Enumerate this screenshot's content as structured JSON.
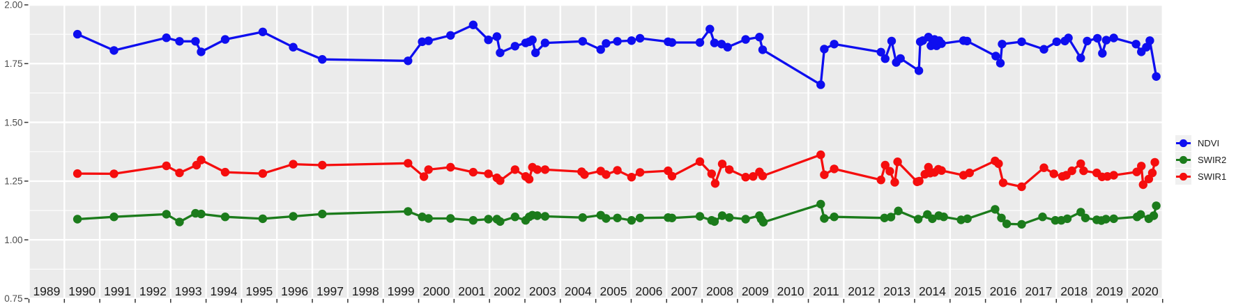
{
  "chart_data": {
    "type": "line",
    "title": "",
    "x_axis": {
      "min": 1989,
      "max": 2021,
      "year_labels": [
        "1989",
        "1990",
        "1991",
        "1992",
        "1993",
        "1994",
        "1995",
        "1996",
        "1997",
        "1998",
        "1999",
        "2000",
        "2001",
        "2002",
        "2003",
        "2004",
        "2005",
        "2006",
        "2007",
        "2008",
        "2009",
        "2010",
        "2011",
        "2012",
        "2013",
        "2014",
        "2015",
        "2016",
        "2017",
        "2018",
        "2019",
        "2020"
      ]
    },
    "y_axis": {
      "min": 0.75,
      "max": 2.0,
      "ticks": [
        {
          "label": "2.00",
          "value": 2.0
        },
        {
          "label": "1.75",
          "value": 1.75
        },
        {
          "label": "1.50",
          "value": 1.5
        },
        {
          "label": "1.25",
          "value": 1.25
        },
        {
          "label": "1.00",
          "value": 1.0
        },
        {
          "label": "0.75",
          "value": 0.75
        }
      ],
      "minor_values": [
        1.875,
        1.625,
        1.375,
        1.125,
        0.875
      ]
    },
    "legend": {
      "position": "right",
      "items": [
        {
          "label": "NDVI",
          "color": "#0E0EEF"
        },
        {
          "label": "SWIR2",
          "color": "#1B7B1B"
        },
        {
          "label": "SWIR1",
          "color": "#F50D0D"
        }
      ]
    },
    "theme": {
      "panel_bg": "#EBEBEB",
      "grid_color": "#FFFFFF",
      "axis_text_color": "#4D4D4D",
      "year_label_color": "#1A1A1A",
      "tick_color": "#333333",
      "legend_key_bg": "#F0F0F0"
    },
    "series": [
      {
        "name": "NDVI",
        "color": "#0E0EEF",
        "points": [
          [
            1990.37,
            1.875
          ],
          [
            1991.4,
            1.806
          ],
          [
            1992.88,
            1.86
          ],
          [
            1993.25,
            1.845
          ],
          [
            1993.7,
            1.845
          ],
          [
            1993.86,
            1.8
          ],
          [
            1994.54,
            1.853
          ],
          [
            1995.6,
            1.885
          ],
          [
            1996.46,
            1.82
          ],
          [
            1997.28,
            1.768
          ],
          [
            1999.7,
            1.762
          ],
          [
            2000.1,
            1.843
          ],
          [
            2000.28,
            1.847
          ],
          [
            2000.9,
            1.87
          ],
          [
            2001.54,
            1.915
          ],
          [
            2001.97,
            1.851
          ],
          [
            2002.21,
            1.865
          ],
          [
            2002.3,
            1.796
          ],
          [
            2002.72,
            1.824
          ],
          [
            2003.02,
            1.838
          ],
          [
            2003.12,
            1.843
          ],
          [
            2003.21,
            1.851
          ],
          [
            2003.3,
            1.796
          ],
          [
            2003.57,
            1.838
          ],
          [
            2004.63,
            1.845
          ],
          [
            2005.14,
            1.81
          ],
          [
            2005.29,
            1.836
          ],
          [
            2005.61,
            1.845
          ],
          [
            2006.01,
            1.848
          ],
          [
            2006.25,
            1.858
          ],
          [
            2007.04,
            1.843
          ],
          [
            2007.15,
            1.84
          ],
          [
            2007.94,
            1.84
          ],
          [
            2008.22,
            1.897
          ],
          [
            2008.35,
            1.838
          ],
          [
            2008.55,
            1.833
          ],
          [
            2008.72,
            1.82
          ],
          [
            2009.23,
            1.853
          ],
          [
            2009.62,
            1.863
          ],
          [
            2009.71,
            1.809
          ],
          [
            2011.35,
            1.66
          ],
          [
            2011.45,
            1.812
          ],
          [
            2011.73,
            1.833
          ],
          [
            2013.05,
            1.799
          ],
          [
            2013.17,
            1.771
          ],
          [
            2013.35,
            1.846
          ],
          [
            2013.48,
            1.755
          ],
          [
            2013.6,
            1.772
          ],
          [
            2014.12,
            1.72
          ],
          [
            2014.16,
            1.843
          ],
          [
            2014.23,
            1.848
          ],
          [
            2014.39,
            1.863
          ],
          [
            2014.46,
            1.826
          ],
          [
            2014.56,
            1.853
          ],
          [
            2014.62,
            1.826
          ],
          [
            2014.69,
            1.848
          ],
          [
            2014.76,
            1.835
          ],
          [
            2015.38,
            1.848
          ],
          [
            2015.48,
            1.846
          ],
          [
            2016.29,
            1.782
          ],
          [
            2016.42,
            1.752
          ],
          [
            2016.47,
            1.833
          ],
          [
            2017.02,
            1.843
          ],
          [
            2017.65,
            1.811
          ],
          [
            2018.01,
            1.843
          ],
          [
            2018.24,
            1.846
          ],
          [
            2018.34,
            1.859
          ],
          [
            2018.69,
            1.774
          ],
          [
            2018.87,
            1.846
          ],
          [
            2019.16,
            1.858
          ],
          [
            2019.3,
            1.794
          ],
          [
            2019.41,
            1.85
          ],
          [
            2019.62,
            1.859
          ],
          [
            2020.25,
            1.833
          ],
          [
            2020.4,
            1.8
          ],
          [
            2020.54,
            1.82
          ],
          [
            2020.64,
            1.848
          ],
          [
            2020.82,
            1.695
          ]
        ]
      },
      {
        "name": "SWIR2",
        "color": "#1B7B1B",
        "points": [
          [
            1990.37,
            1.088
          ],
          [
            1991.4,
            1.098
          ],
          [
            1992.88,
            1.109
          ],
          [
            1993.25,
            1.076
          ],
          [
            1993.7,
            1.113
          ],
          [
            1993.86,
            1.11
          ],
          [
            1994.54,
            1.098
          ],
          [
            1995.6,
            1.09
          ],
          [
            1996.46,
            1.1
          ],
          [
            1997.28,
            1.11
          ],
          [
            1999.7,
            1.121
          ],
          [
            2000.1,
            1.098
          ],
          [
            2000.28,
            1.091
          ],
          [
            2000.9,
            1.091
          ],
          [
            2001.54,
            1.083
          ],
          [
            2001.97,
            1.088
          ],
          [
            2002.21,
            1.088
          ],
          [
            2002.3,
            1.078
          ],
          [
            2002.72,
            1.098
          ],
          [
            2003.02,
            1.083
          ],
          [
            2003.12,
            1.098
          ],
          [
            2003.21,
            1.105
          ],
          [
            2003.35,
            1.103
          ],
          [
            2003.57,
            1.1
          ],
          [
            2004.63,
            1.095
          ],
          [
            2005.14,
            1.105
          ],
          [
            2005.29,
            1.091
          ],
          [
            2005.61,
            1.093
          ],
          [
            2006.01,
            1.083
          ],
          [
            2006.25,
            1.093
          ],
          [
            2007.04,
            1.095
          ],
          [
            2007.15,
            1.093
          ],
          [
            2007.94,
            1.1
          ],
          [
            2008.27,
            1.083
          ],
          [
            2008.35,
            1.078
          ],
          [
            2008.57,
            1.103
          ],
          [
            2008.77,
            1.095
          ],
          [
            2009.23,
            1.088
          ],
          [
            2009.62,
            1.103
          ],
          [
            2009.67,
            1.088
          ],
          [
            2009.73,
            1.075
          ],
          [
            2011.35,
            1.152
          ],
          [
            2011.45,
            1.091
          ],
          [
            2011.73,
            1.098
          ],
          [
            2013.15,
            1.093
          ],
          [
            2013.33,
            1.097
          ],
          [
            2013.54,
            1.123
          ],
          [
            2014.1,
            1.088
          ],
          [
            2014.36,
            1.108
          ],
          [
            2014.5,
            1.09
          ],
          [
            2014.68,
            1.103
          ],
          [
            2014.82,
            1.098
          ],
          [
            2015.31,
            1.085
          ],
          [
            2015.49,
            1.09
          ],
          [
            2016.27,
            1.13
          ],
          [
            2016.45,
            1.093
          ],
          [
            2016.6,
            1.068
          ],
          [
            2017.02,
            1.066
          ],
          [
            2017.61,
            1.098
          ],
          [
            2017.97,
            1.083
          ],
          [
            2018.14,
            1.083
          ],
          [
            2018.31,
            1.09
          ],
          [
            2018.69,
            1.118
          ],
          [
            2018.82,
            1.093
          ],
          [
            2019.14,
            1.085
          ],
          [
            2019.27,
            1.082
          ],
          [
            2019.4,
            1.088
          ],
          [
            2019.62,
            1.09
          ],
          [
            2020.28,
            1.098
          ],
          [
            2020.38,
            1.108
          ],
          [
            2020.61,
            1.09
          ],
          [
            2020.75,
            1.103
          ],
          [
            2020.82,
            1.145
          ]
        ]
      },
      {
        "name": "SWIR1",
        "color": "#F50D0D",
        "points": [
          [
            1990.37,
            1.282
          ],
          [
            1991.4,
            1.281
          ],
          [
            1992.88,
            1.315
          ],
          [
            1993.25,
            1.285
          ],
          [
            1993.73,
            1.318
          ],
          [
            1993.86,
            1.34
          ],
          [
            1994.54,
            1.288
          ],
          [
            1995.6,
            1.282
          ],
          [
            1996.46,
            1.322
          ],
          [
            1997.28,
            1.318
          ],
          [
            1999.7,
            1.326
          ],
          [
            2000.15,
            1.269
          ],
          [
            2000.28,
            1.299
          ],
          [
            2000.9,
            1.309
          ],
          [
            2001.54,
            1.288
          ],
          [
            2001.97,
            1.281
          ],
          [
            2002.21,
            1.264
          ],
          [
            2002.3,
            1.252
          ],
          [
            2002.72,
            1.299
          ],
          [
            2003.02,
            1.27
          ],
          [
            2003.12,
            1.258
          ],
          [
            2003.21,
            1.309
          ],
          [
            2003.35,
            1.299
          ],
          [
            2003.57,
            1.299
          ],
          [
            2004.6,
            1.29
          ],
          [
            2004.68,
            1.278
          ],
          [
            2005.14,
            1.293
          ],
          [
            2005.29,
            1.278
          ],
          [
            2005.61,
            1.296
          ],
          [
            2006.01,
            1.267
          ],
          [
            2006.25,
            1.287
          ],
          [
            2007.04,
            1.294
          ],
          [
            2007.15,
            1.271
          ],
          [
            2007.94,
            1.333
          ],
          [
            2008.27,
            1.281
          ],
          [
            2008.37,
            1.24
          ],
          [
            2008.57,
            1.323
          ],
          [
            2008.77,
            1.299
          ],
          [
            2009.23,
            1.267
          ],
          [
            2009.44,
            1.27
          ],
          [
            2009.62,
            1.289
          ],
          [
            2009.71,
            1.272
          ],
          [
            2011.35,
            1.362
          ],
          [
            2011.45,
            1.277
          ],
          [
            2011.73,
            1.302
          ],
          [
            2013.05,
            1.255
          ],
          [
            2013.17,
            1.318
          ],
          [
            2013.3,
            1.292
          ],
          [
            2013.44,
            1.245
          ],
          [
            2013.52,
            1.332
          ],
          [
            2014.07,
            1.247
          ],
          [
            2014.13,
            1.25
          ],
          [
            2014.29,
            1.279
          ],
          [
            2014.39,
            1.309
          ],
          [
            2014.44,
            1.284
          ],
          [
            2014.56,
            1.287
          ],
          [
            2014.67,
            1.3
          ],
          [
            2014.76,
            1.295
          ],
          [
            2015.38,
            1.275
          ],
          [
            2015.55,
            1.285
          ],
          [
            2016.27,
            1.336
          ],
          [
            2016.37,
            1.324
          ],
          [
            2016.5,
            1.243
          ],
          [
            2017.02,
            1.226
          ],
          [
            2017.65,
            1.307
          ],
          [
            2017.93,
            1.281
          ],
          [
            2018.17,
            1.27
          ],
          [
            2018.28,
            1.275
          ],
          [
            2018.44,
            1.294
          ],
          [
            2018.69,
            1.324
          ],
          [
            2018.77,
            1.294
          ],
          [
            2019.14,
            1.285
          ],
          [
            2019.29,
            1.268
          ],
          [
            2019.44,
            1.27
          ],
          [
            2019.62,
            1.275
          ],
          [
            2020.27,
            1.289
          ],
          [
            2020.4,
            1.314
          ],
          [
            2020.45,
            1.235
          ],
          [
            2020.61,
            1.259
          ],
          [
            2020.71,
            1.285
          ],
          [
            2020.78,
            1.33
          ]
        ]
      }
    ]
  }
}
